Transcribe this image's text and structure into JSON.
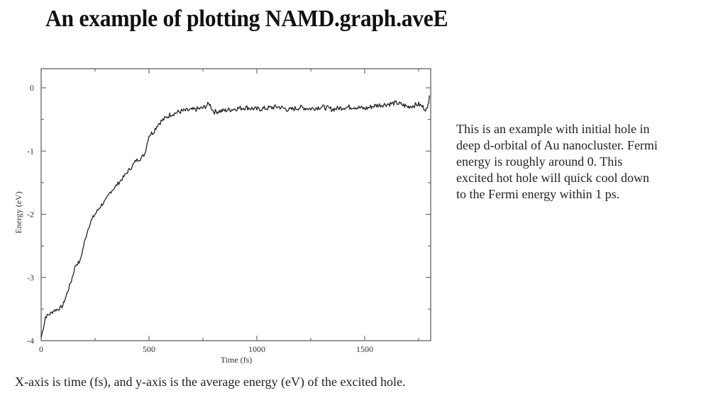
{
  "slide": {
    "title": "An example of plotting NAMD.graph.aveE",
    "description_lines": [
      "This is an example with initial hole in",
      "deep d-orbital of Au nanocluster. Fermi",
      "energy is roughly around 0. This",
      "excited hot hole will quick cool down",
      "to the Fermi energy within 1 ps."
    ],
    "caption": "X-axis is time (fs), and y-axis is the average energy (eV) of the excited hole."
  },
  "chart_data": {
    "type": "line",
    "title": "",
    "xlabel": "Time (fs)",
    "ylabel": "Energy (eV)",
    "xlim": [
      0,
      1800
    ],
    "ylim": [
      -4,
      0.3
    ],
    "xticks": [
      0,
      500,
      1000,
      1500
    ],
    "xtick_labels": [
      "0",
      "500",
      "1000",
      "1500"
    ],
    "yticks": [
      0,
      -1,
      -2,
      -3,
      -4
    ],
    "ytick_labels": [
      "0",
      "-1",
      "-2",
      "-3",
      "-4"
    ],
    "grid": false,
    "legend": null,
    "series": [
      {
        "name": "aveE",
        "color": "#222222",
        "x": [
          0,
          10,
          20,
          40,
          60,
          80,
          100,
          120,
          140,
          160,
          180,
          200,
          220,
          240,
          260,
          280,
          300,
          320,
          340,
          360,
          380,
          400,
          420,
          440,
          460,
          480,
          500,
          520,
          540,
          560,
          580,
          600,
          650,
          700,
          750,
          780,
          800,
          850,
          900,
          950,
          1000,
          1050,
          1100,
          1150,
          1200,
          1250,
          1300,
          1350,
          1400,
          1450,
          1500,
          1550,
          1600,
          1650,
          1700,
          1750,
          1790,
          1800
        ],
        "y": [
          -3.95,
          -3.8,
          -3.62,
          -3.58,
          -3.52,
          -3.5,
          -3.45,
          -3.25,
          -3.05,
          -2.8,
          -2.75,
          -2.45,
          -2.2,
          -2.05,
          -1.95,
          -1.85,
          -1.78,
          -1.65,
          -1.58,
          -1.5,
          -1.42,
          -1.33,
          -1.25,
          -1.15,
          -1.12,
          -1.05,
          -0.75,
          -0.7,
          -0.58,
          -0.52,
          -0.47,
          -0.42,
          -0.37,
          -0.35,
          -0.32,
          -0.25,
          -0.38,
          -0.36,
          -0.33,
          -0.31,
          -0.34,
          -0.32,
          -0.3,
          -0.35,
          -0.31,
          -0.33,
          -0.3,
          -0.34,
          -0.31,
          -0.3,
          -0.33,
          -0.28,
          -0.26,
          -0.24,
          -0.3,
          -0.26,
          -0.35,
          -0.12
        ]
      }
    ]
  }
}
